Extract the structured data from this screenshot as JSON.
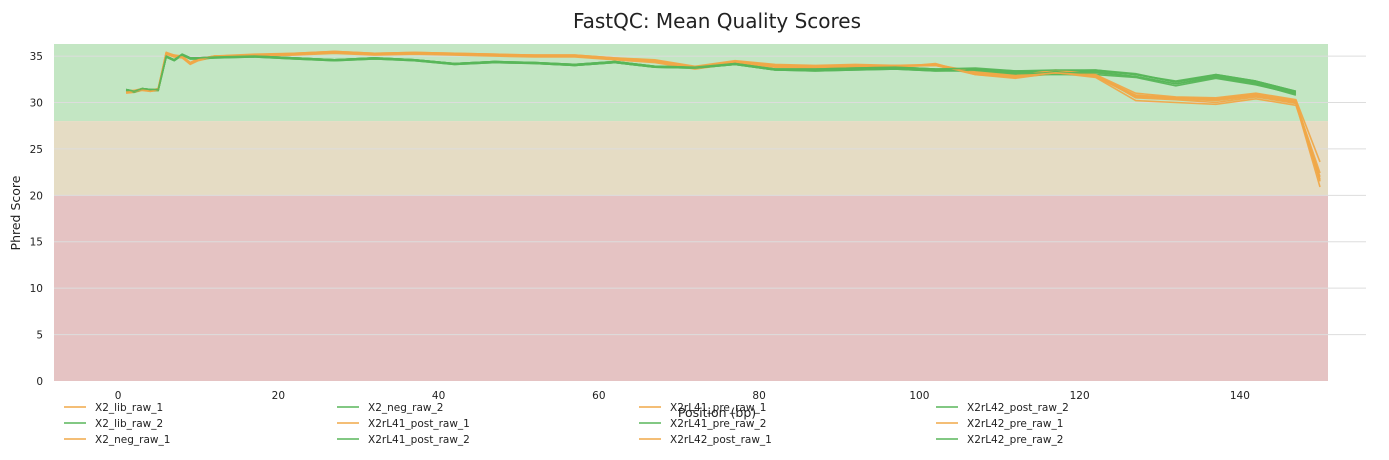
{
  "chart_data": {
    "type": "line",
    "title": "FastQC: Mean Quality Scores",
    "xlabel": "Position (bp)",
    "ylabel": "Phred Score",
    "xlim": [
      -8,
      151
    ],
    "ylim": [
      0,
      36.3
    ],
    "xticks": [
      0,
      20,
      40,
      60,
      80,
      100,
      120,
      140
    ],
    "yticks": [
      0,
      5,
      10,
      15,
      20,
      25,
      30,
      35
    ],
    "grid": "horizontal",
    "legend_position": "bottom",
    "bands": [
      {
        "from": 28,
        "to": 36.3,
        "color": "#c3e6c3"
      },
      {
        "from": 20,
        "to": 28,
        "color": "#e5dcc4"
      },
      {
        "from": 0,
        "to": 20,
        "color": "#e5c3c3"
      }
    ],
    "x": [
      1,
      2,
      3,
      4,
      5,
      6,
      7,
      8,
      9,
      10,
      12,
      17,
      22,
      27,
      32,
      37,
      42,
      47,
      52,
      57,
      62,
      67,
      72,
      77,
      82,
      87,
      92,
      97,
      102,
      107,
      112,
      117,
      122,
      127,
      132,
      137,
      142,
      147,
      150
    ],
    "series": [
      {
        "name": "X2_lib_raw_1",
        "color": "#f0a848",
        "values": [
          31.1,
          31.2,
          31.5,
          31.3,
          31.5,
          35.4,
          35.0,
          35.0,
          34.3,
          34.7,
          35.0,
          35.1,
          35.3,
          35.5,
          35.3,
          35.4,
          35.3,
          35.2,
          35.1,
          35.1,
          34.8,
          34.5,
          33.8,
          34.4,
          34.0,
          33.9,
          34.0,
          34.0,
          34.0,
          33.0,
          32.7,
          33.1,
          32.9,
          30.8,
          30.5,
          30.3,
          30.8,
          30.1,
          21.5
        ]
      },
      {
        "name": "X2_lib_raw_2",
        "color": "#59b65a",
        "values": [
          31.4,
          31.2,
          31.5,
          31.4,
          31.4,
          35.0,
          34.6,
          35.2,
          34.8,
          34.8,
          34.9,
          35.0,
          34.8,
          34.6,
          34.8,
          34.6,
          34.2,
          34.4,
          34.3,
          34.1,
          34.4,
          33.9,
          33.8,
          34.2,
          33.6,
          33.6,
          33.7,
          33.8,
          33.6,
          33.5,
          33.2,
          33.4,
          33.3,
          32.8,
          32.0,
          32.8,
          32.1,
          31.0,
          null
        ]
      },
      {
        "name": "X2_neg_raw_1",
        "color": "#f0a848",
        "values": [
          31.2,
          31.3,
          31.4,
          31.3,
          31.4,
          35.3,
          35.1,
          34.9,
          34.2,
          34.6,
          35.0,
          35.1,
          35.2,
          35.4,
          35.2,
          35.3,
          35.2,
          35.1,
          35.0,
          35.0,
          34.7,
          34.4,
          33.7,
          34.3,
          33.9,
          33.8,
          33.9,
          33.9,
          34.1,
          33.2,
          32.9,
          33.3,
          33.0,
          30.5,
          30.3,
          30.0,
          30.6,
          29.9,
          20.9
        ]
      },
      {
        "name": "X2_neg_raw_2",
        "color": "#59b65a",
        "values": [
          31.3,
          31.1,
          31.4,
          31.3,
          31.3,
          34.9,
          34.5,
          35.1,
          34.7,
          34.7,
          34.8,
          34.9,
          34.7,
          34.5,
          34.7,
          34.5,
          34.1,
          34.3,
          34.2,
          34.0,
          34.3,
          33.8,
          33.7,
          34.1,
          33.5,
          33.5,
          33.6,
          33.7,
          33.5,
          33.6,
          33.4,
          33.3,
          33.4,
          33.0,
          32.3,
          33.0,
          32.3,
          31.2,
          null
        ]
      },
      {
        "name": "X2rL41_post_raw_1",
        "color": "#f0a848",
        "values": [
          31.0,
          31.1,
          31.3,
          31.2,
          31.3,
          35.2,
          34.9,
          34.8,
          34.1,
          34.5,
          34.9,
          35.0,
          35.1,
          35.3,
          35.1,
          35.2,
          35.1,
          35.0,
          34.9,
          34.9,
          34.6,
          34.3,
          33.6,
          34.2,
          33.8,
          33.7,
          33.8,
          33.8,
          34.2,
          33.0,
          32.6,
          33.2,
          32.7,
          30.2,
          30.0,
          29.8,
          30.4,
          29.7,
          22.0
        ]
      },
      {
        "name": "X2rL41_post_raw_2",
        "color": "#59b65a",
        "values": [
          31.3,
          31.2,
          31.5,
          31.4,
          31.3,
          34.9,
          34.6,
          35.1,
          34.8,
          34.8,
          34.9,
          35.0,
          34.8,
          34.6,
          34.8,
          34.6,
          34.2,
          34.4,
          34.2,
          34.0,
          34.3,
          33.8,
          33.7,
          34.1,
          33.5,
          33.4,
          33.5,
          33.6,
          33.4,
          33.4,
          33.0,
          33.0,
          33.0,
          32.7,
          31.8,
          32.6,
          31.9,
          30.9,
          null
        ]
      },
      {
        "name": "X2rL41_pre_raw_1",
        "color": "#f0a848",
        "values": [
          31.1,
          31.2,
          31.4,
          31.2,
          31.4,
          35.3,
          35.0,
          34.9,
          34.2,
          34.6,
          34.9,
          35.1,
          35.2,
          35.4,
          35.2,
          35.3,
          35.2,
          35.1,
          35.0,
          35.0,
          34.7,
          34.4,
          33.7,
          34.3,
          33.9,
          33.8,
          33.9,
          33.9,
          34.0,
          33.1,
          32.8,
          33.2,
          32.8,
          30.6,
          30.4,
          30.2,
          30.7,
          30.0,
          22.4
        ]
      },
      {
        "name": "X2rL41_pre_raw_2",
        "color": "#59b65a",
        "values": [
          31.4,
          31.2,
          31.5,
          31.4,
          31.4,
          35.0,
          34.6,
          35.2,
          34.8,
          34.8,
          34.9,
          35.0,
          34.8,
          34.6,
          34.8,
          34.6,
          34.2,
          34.4,
          34.3,
          34.1,
          34.4,
          33.9,
          33.8,
          34.2,
          33.6,
          33.6,
          33.7,
          33.8,
          33.6,
          33.6,
          33.3,
          33.4,
          33.5,
          33.0,
          32.2,
          32.9,
          32.2,
          31.1,
          null
        ]
      },
      {
        "name": "X2rL42_post_raw_1",
        "color": "#f0a848",
        "values": [
          31.2,
          31.3,
          31.5,
          31.3,
          31.5,
          35.4,
          35.1,
          35.0,
          34.3,
          34.7,
          35.0,
          35.2,
          35.3,
          35.5,
          35.3,
          35.4,
          35.3,
          35.2,
          35.1,
          35.1,
          34.8,
          34.6,
          33.9,
          34.5,
          34.1,
          34.0,
          34.1,
          34.0,
          34.1,
          33.3,
          32.9,
          33.5,
          33.0,
          31.0,
          30.6,
          30.5,
          31.0,
          30.3,
          23.6
        ]
      },
      {
        "name": "X2rL42_post_raw_2",
        "color": "#59b65a",
        "values": [
          31.3,
          31.1,
          31.4,
          31.3,
          31.3,
          34.9,
          34.5,
          35.1,
          34.7,
          34.7,
          34.8,
          34.9,
          34.7,
          34.5,
          34.7,
          34.5,
          34.1,
          34.3,
          34.2,
          34.0,
          34.3,
          33.8,
          33.7,
          34.1,
          33.5,
          33.4,
          33.5,
          33.6,
          33.4,
          33.5,
          33.1,
          33.2,
          33.2,
          32.8,
          32.0,
          32.7,
          32.0,
          30.8,
          null
        ]
      },
      {
        "name": "X2rL42_pre_raw_1",
        "color": "#f0a848",
        "values": [
          31.1,
          31.2,
          31.4,
          31.2,
          31.4,
          35.3,
          35.0,
          34.9,
          34.2,
          34.6,
          35.0,
          35.1,
          35.2,
          35.4,
          35.2,
          35.3,
          35.2,
          35.1,
          35.0,
          35.0,
          34.7,
          34.5,
          33.8,
          34.4,
          34.0,
          33.9,
          34.0,
          33.9,
          34.0,
          33.1,
          32.8,
          33.2,
          32.9,
          30.7,
          30.5,
          30.4,
          30.9,
          30.2,
          21.7
        ]
      },
      {
        "name": "X2rL42_pre_raw_2",
        "color": "#59b65a",
        "values": [
          31.4,
          31.2,
          31.5,
          31.4,
          31.4,
          35.0,
          34.6,
          35.2,
          34.8,
          34.8,
          34.9,
          35.0,
          34.8,
          34.6,
          34.8,
          34.6,
          34.2,
          34.4,
          34.3,
          34.1,
          34.4,
          33.9,
          33.8,
          34.2,
          33.6,
          33.6,
          33.7,
          33.8,
          33.6,
          33.7,
          33.4,
          33.5,
          33.5,
          33.1,
          32.2,
          33.0,
          32.3,
          31.2,
          null
        ]
      }
    ]
  }
}
